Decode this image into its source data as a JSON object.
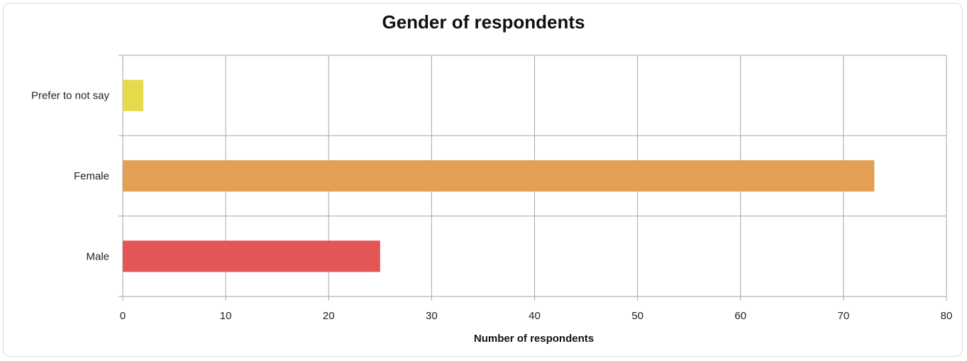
{
  "chart_data": {
    "type": "bar",
    "orientation": "horizontal",
    "title": "Gender of respondents",
    "xlabel": "Number of respondents",
    "ylabel": "",
    "categories": [
      "Prefer to not say",
      "Female",
      "Male"
    ],
    "values": [
      2,
      73,
      25
    ],
    "colors": [
      "#e5d94c",
      "#e3a055",
      "#e35656"
    ],
    "xlim": [
      0,
      80
    ],
    "x_ticks": [
      "0",
      "10",
      "20",
      "30",
      "40",
      "50",
      "60",
      "70",
      "80"
    ],
    "grid": true,
    "legend": "none"
  }
}
